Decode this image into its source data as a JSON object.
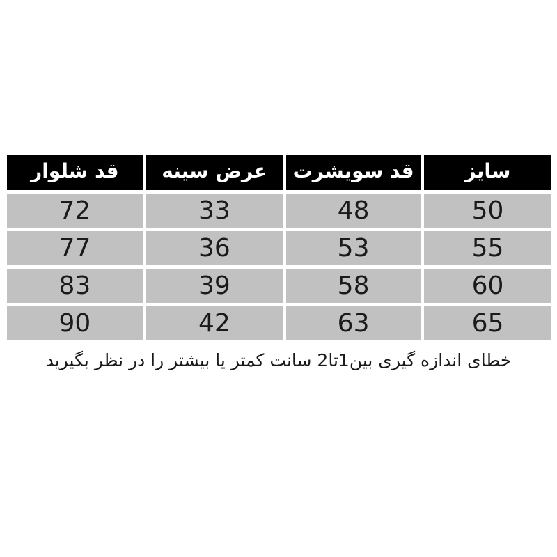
{
  "table": {
    "headers": [
      "سایز",
      "قد سویشرت",
      "عرض سینه",
      "قد شلوار"
    ],
    "rows": [
      [
        "50",
        "48",
        "33",
        "72"
      ],
      [
        "55",
        "53",
        "36",
        "77"
      ],
      [
        "60",
        "58",
        "39",
        "83"
      ],
      [
        "65",
        "63",
        "42",
        "90"
      ]
    ]
  },
  "note": "خطای اندازه گیری بین1تا2 سانت کمتر یا بیشتر را در نظر بگیرید",
  "colors": {
    "page_bg": "#ffffff",
    "header_bg": "#000000",
    "header_text": "#ffffff",
    "cell_bg": "#c1c1c1",
    "cell_text": "#1a1a1a",
    "note_text": "#1a1a1a"
  },
  "chart_data": {
    "type": "table",
    "title": "",
    "direction": "rtl",
    "columns": [
      "سایز",
      "قد سویشرت",
      "عرض سینه",
      "قد شلوار"
    ],
    "column_meanings": [
      "size",
      "sweatshirt-length-cm",
      "chest-width-cm",
      "pants-length-cm"
    ],
    "rows": [
      [
        50,
        48,
        33,
        72
      ],
      [
        55,
        53,
        36,
        77
      ],
      [
        60,
        58,
        39,
        83
      ],
      [
        65,
        63,
        42,
        90
      ]
    ],
    "footnote": "خطای اندازه گیری بین1تا2 سانت کمتر یا بیشتر را در نظر بگیرید",
    "layout": {
      "header_style": "black-band-white-bold-text",
      "body_style": "gray-cells-white-gutters",
      "grid": "white 5px gutters between all cells"
    }
  }
}
